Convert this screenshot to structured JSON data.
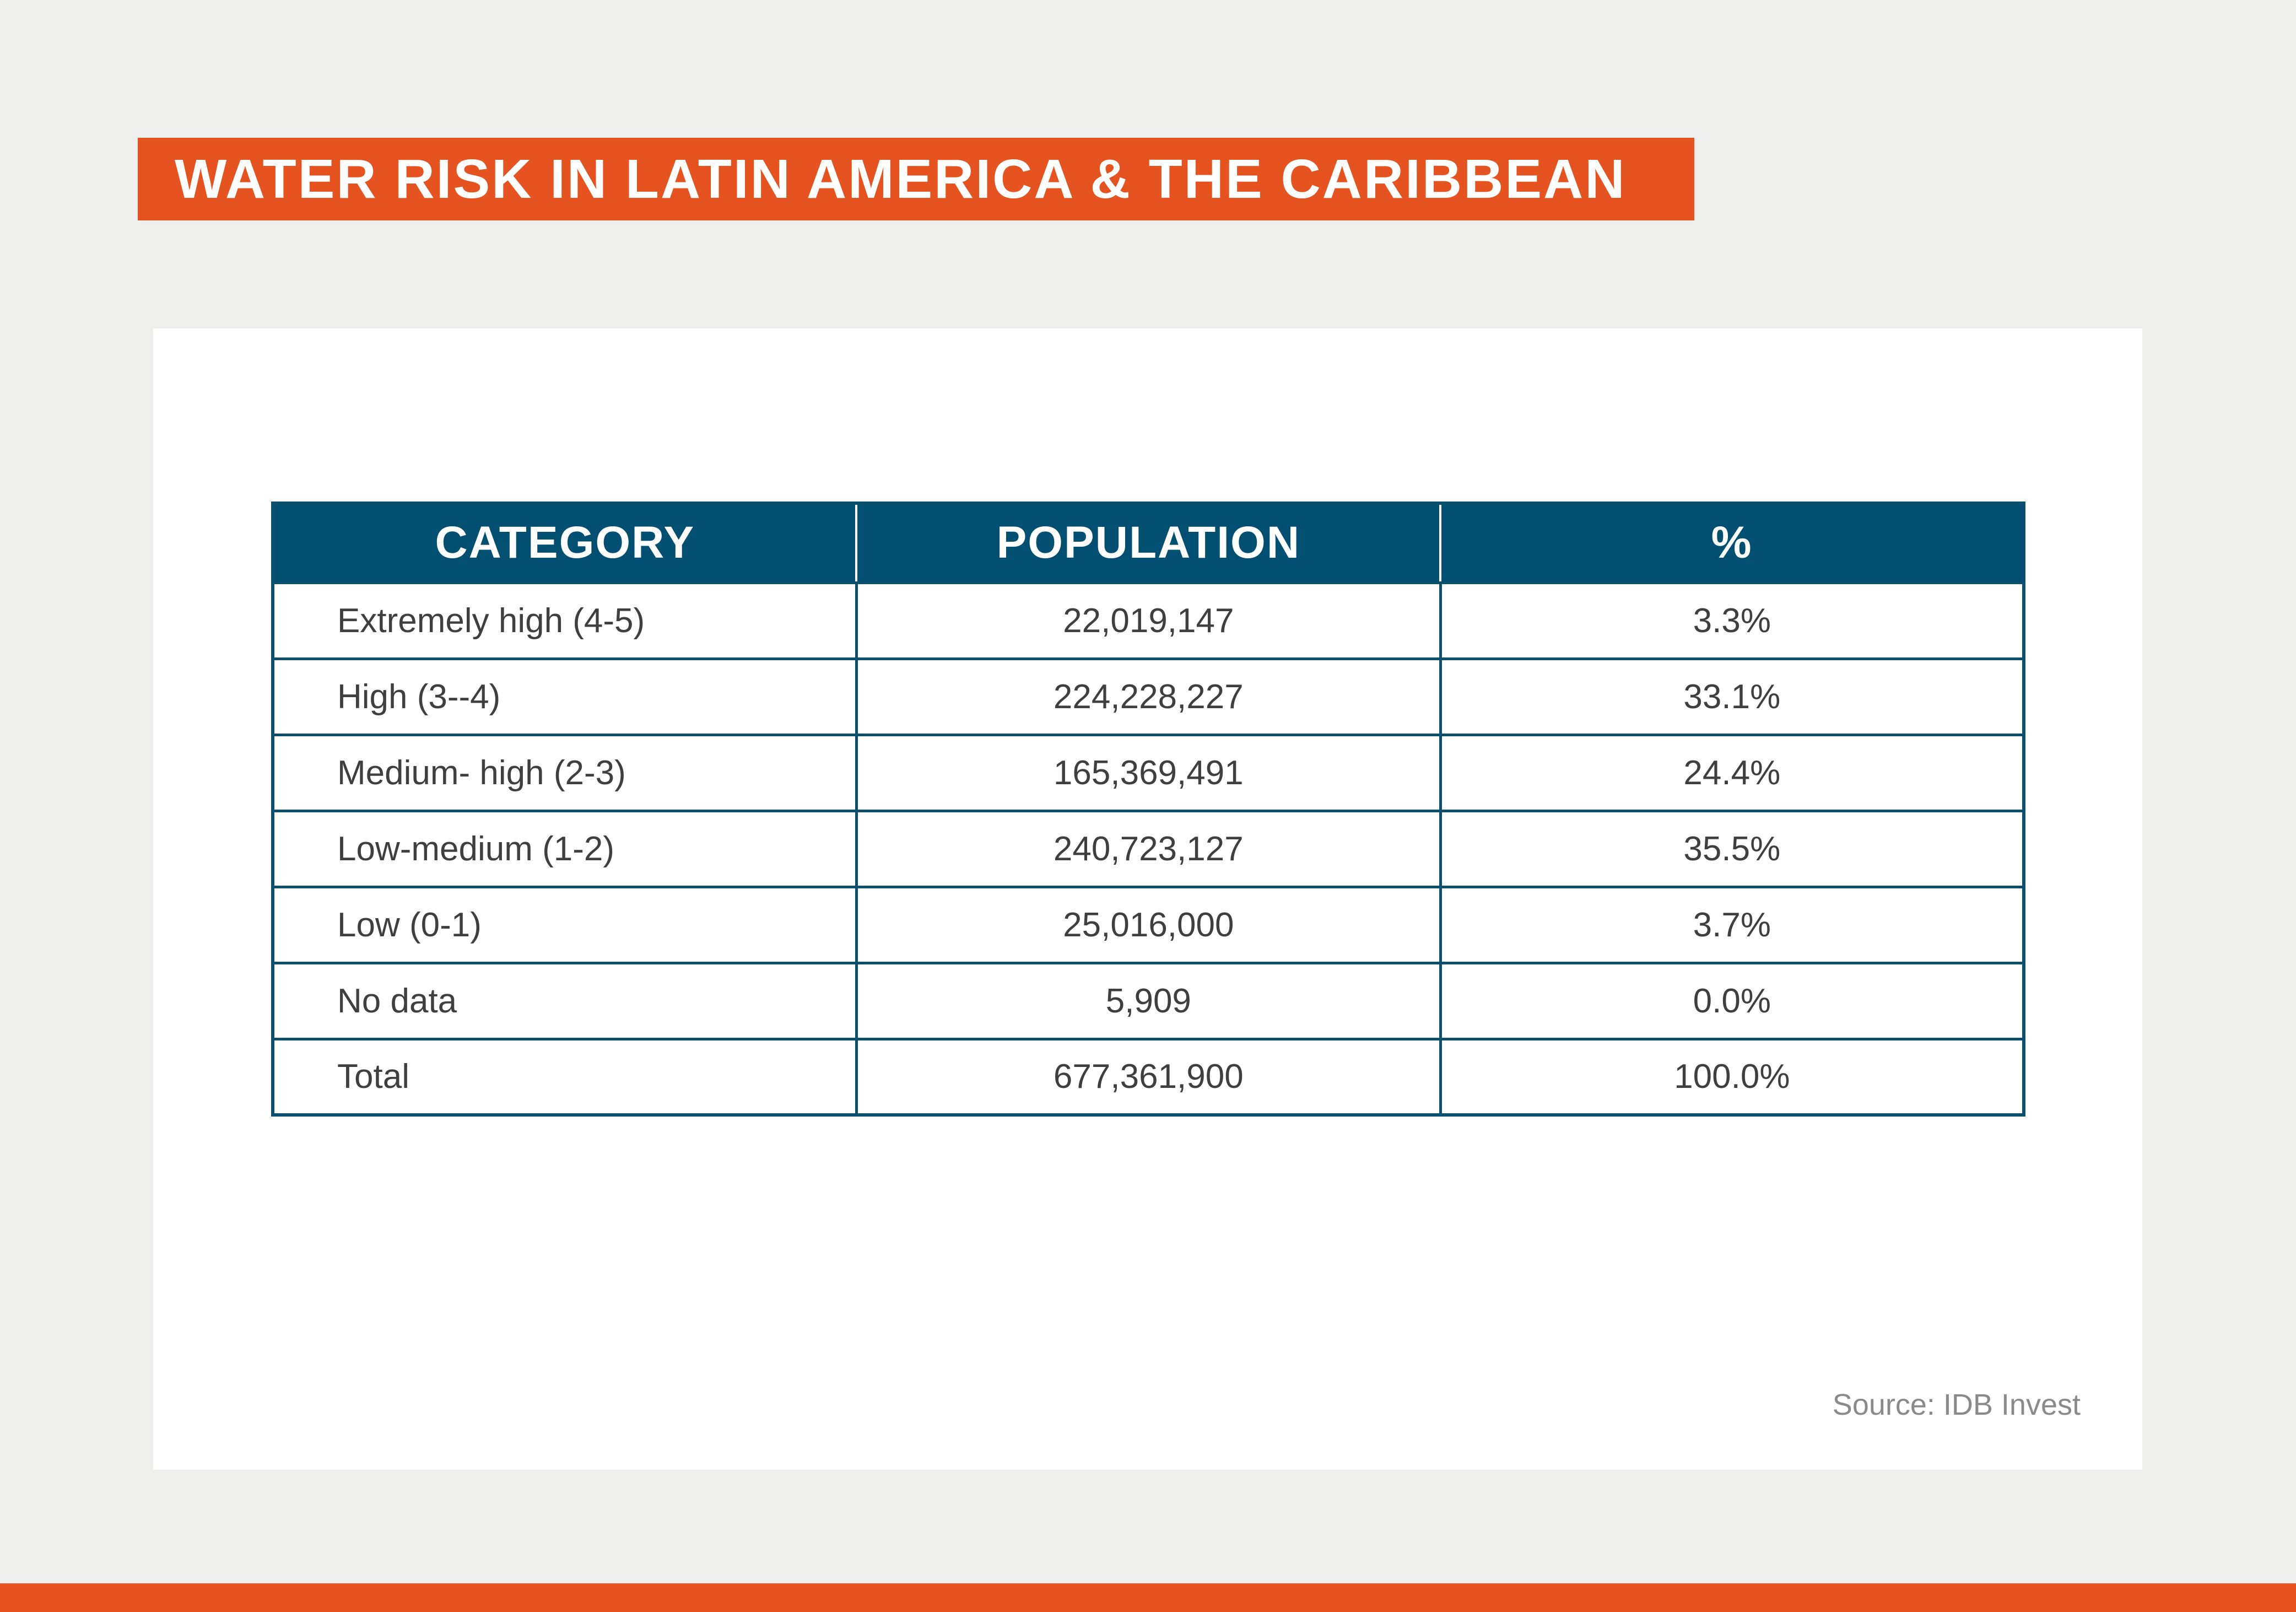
{
  "title": "WATER RISK IN LATIN AMERICA & THE CARIBBEAN",
  "source": "Source: IDB Invest",
  "colors": {
    "accent": "#e55420",
    "header": "#034f72",
    "border": "#0b4f6c",
    "background": "#eeeeec"
  },
  "chart_data": {
    "type": "table",
    "title": "WATER RISK IN LATIN AMERICA & THE CARIBBEAN",
    "columns": [
      "CATEGORY",
      "POPULATION",
      "%"
    ],
    "rows": [
      [
        "Extremely high (4-5)",
        "22,019,147",
        "3.3%"
      ],
      [
        "High (3--4)",
        "224,228,227",
        "33.1%"
      ],
      [
        "Medium- high (2-3)",
        "165,369,491",
        "24.4%"
      ],
      [
        "Low-medium (1-2)",
        "240,723,127",
        "35.5%"
      ],
      [
        "Low (0-1)",
        "25,016,000",
        "3.7%"
      ],
      [
        "No data",
        "5,909",
        "0.0%"
      ],
      [
        "Total",
        "677,361,900",
        "100.0%"
      ]
    ]
  }
}
